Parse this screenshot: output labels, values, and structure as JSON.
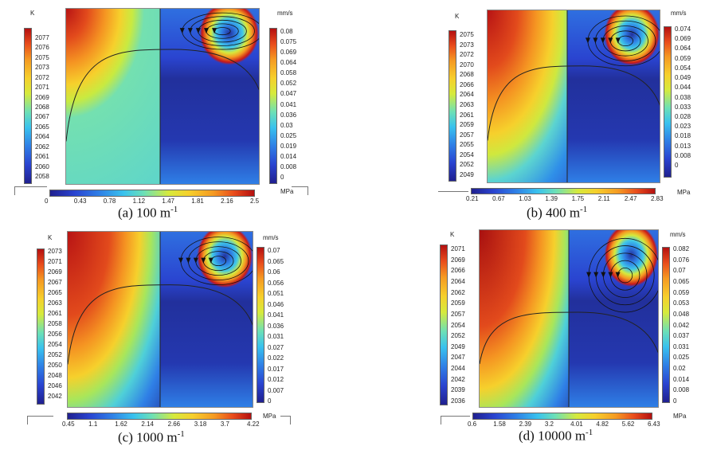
{
  "panels": [
    {
      "caption": "(a) 100 m",
      "caption_sup": "-1",
      "temp_unit": "K",
      "vel_unit": "mm/s",
      "stress_unit": "MPa",
      "temp_ticks": [
        "2077",
        "2076",
        "2075",
        "2073",
        "2072",
        "2071",
        "2069",
        "2068",
        "2067",
        "2065",
        "2064",
        "2062",
        "2061",
        "2060",
        "2058"
      ],
      "vel_ticks": [
        "0.08",
        "0.075",
        "0.069",
        "0.064",
        "0.058",
        "0.052",
        "0.047",
        "0.041",
        "0.036",
        "0.03",
        "0.025",
        "0.019",
        "0.014",
        "0.008",
        "0"
      ],
      "stress_ticks": [
        "0",
        "0.43",
        "0.78",
        "1.12",
        "1.47",
        "1.81",
        "2.16",
        "2.5"
      ]
    },
    {
      "caption": "(b) 400 m",
      "caption_sup": "-1",
      "temp_unit": "K",
      "vel_unit": "mm/s",
      "stress_unit": "MPa",
      "temp_ticks": [
        "2075",
        "2073",
        "2072",
        "2070",
        "2068",
        "2066",
        "2064",
        "2063",
        "2061",
        "2059",
        "2057",
        "2055",
        "2054",
        "2052",
        "2049"
      ],
      "vel_ticks": [
        "0.074",
        "0.069",
        "0.064",
        "0.059",
        "0.054",
        "0.049",
        "0.044",
        "0.038",
        "0.033",
        "0.028",
        "0.023",
        "0.018",
        "0.013",
        "0.008",
        "0"
      ],
      "stress_ticks": [
        "0.21",
        "0.67",
        "1.03",
        "1.39",
        "1.75",
        "2.11",
        "2.47",
        "2.83"
      ]
    },
    {
      "caption": "(c) 1000 m",
      "caption_sup": "-1",
      "temp_unit": "K",
      "vel_unit": "mm/s",
      "stress_unit": "MPa",
      "temp_ticks": [
        "2073",
        "2071",
        "2069",
        "2067",
        "2065",
        "2063",
        "2061",
        "2058",
        "2056",
        "2054",
        "2052",
        "2050",
        "2048",
        "2046",
        "2042"
      ],
      "vel_ticks": [
        "0.07",
        "0.065",
        "0.06",
        "0.056",
        "0.051",
        "0.046",
        "0.041",
        "0.036",
        "0.031",
        "0.027",
        "0.022",
        "0.017",
        "0.012",
        "0.007",
        "0"
      ],
      "stress_ticks": [
        "0.45",
        "1.1",
        "1.62",
        "2.14",
        "2.66",
        "3.18",
        "3.7",
        "4.22"
      ]
    },
    {
      "caption": "(d) 10000 m",
      "caption_sup": "-1",
      "temp_unit": "K",
      "vel_unit": "mm/s",
      "stress_unit": "MPa",
      "temp_ticks": [
        "2071",
        "2069",
        "2066",
        "2064",
        "2062",
        "2059",
        "2057",
        "2054",
        "2052",
        "2049",
        "2047",
        "2044",
        "2042",
        "2039",
        "2036"
      ],
      "vel_ticks": [
        "0.082",
        "0.076",
        "0.07",
        "0.065",
        "0.059",
        "0.053",
        "0.048",
        "0.042",
        "0.037",
        "0.031",
        "0.025",
        "0.02",
        "0.014",
        "0.008",
        "0"
      ],
      "stress_ticks": [
        "0.6",
        "1.58",
        "2.39",
        "3.2",
        "4.01",
        "4.82",
        "5.62",
        "6.43"
      ]
    }
  ]
}
